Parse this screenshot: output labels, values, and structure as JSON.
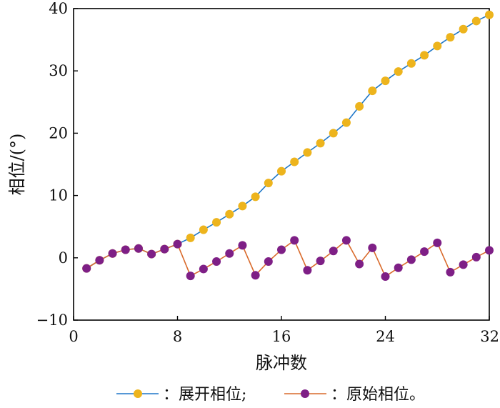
{
  "chart_data": {
    "type": "line",
    "xlabel": "脉冲数",
    "ylabel": "相位/(°)",
    "xlim": [
      0,
      32
    ],
    "ylim": [
      -10,
      40
    ],
    "xticks": [
      0,
      8,
      16,
      24,
      32
    ],
    "yticks": [
      -10,
      0,
      10,
      20,
      30,
      40
    ],
    "grid": false,
    "legend_position": "bottom",
    "series": [
      {
        "name": "：展开相位;",
        "line_color": "#1f77c8",
        "marker_color": "#edb41d",
        "x": [
          1,
          2,
          3,
          4,
          5,
          6,
          7,
          8,
          9,
          10,
          11,
          12,
          13,
          14,
          15,
          16,
          17,
          18,
          19,
          20,
          21,
          22,
          23,
          24,
          25,
          26,
          27,
          28,
          29,
          30,
          31,
          32
        ],
        "values": [
          -1.7,
          -0.4,
          0.7,
          1.3,
          1.5,
          0.6,
          1.4,
          2.2,
          3.2,
          4.5,
          5.7,
          7.0,
          8.3,
          9.8,
          12.0,
          13.9,
          15.4,
          16.9,
          18.4,
          20.0,
          21.7,
          24.3,
          26.8,
          28.4,
          29.9,
          31.2,
          32.5,
          34.0,
          35.4,
          36.7,
          38.0,
          39.0
        ]
      },
      {
        "name": "：原始相位。",
        "line_color": "#d96a2b",
        "marker_color": "#7e1f86",
        "x": [
          1,
          2,
          3,
          4,
          5,
          6,
          7,
          8,
          9,
          10,
          11,
          12,
          13,
          14,
          15,
          16,
          17,
          18,
          19,
          20,
          21,
          22,
          23,
          24,
          25,
          26,
          27,
          28,
          29,
          30,
          31,
          32
        ],
        "values": [
          -1.7,
          -0.4,
          0.7,
          1.3,
          1.5,
          0.6,
          1.4,
          2.2,
          -2.9,
          -1.8,
          -0.6,
          0.7,
          2.0,
          -2.8,
          -0.6,
          1.3,
          2.8,
          -2.0,
          -0.5,
          1.1,
          2.8,
          -1.0,
          1.6,
          -3.0,
          -1.6,
          -0.3,
          1.0,
          2.4,
          -2.3,
          -1.1,
          0.1,
          1.2
        ]
      }
    ]
  }
}
